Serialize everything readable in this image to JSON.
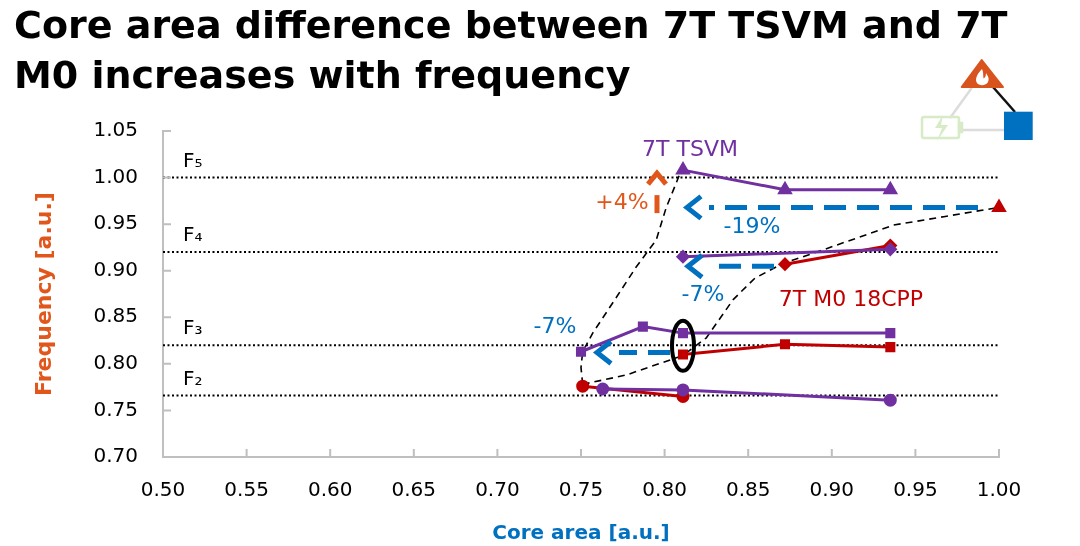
{
  "chart_data": {
    "type": "line",
    "title": "Core area difference between 7T TSVM and 7T M0 increases with frequency",
    "xlabel": "Core area [a.u.]",
    "ylabel": "Frequency [a.u.]",
    "xlim": [
      0.5,
      1.0
    ],
    "xticks": [
      {
        "value": 0.5,
        "label": "0.50"
      },
      0.55,
      {
        "value": 0.6,
        "label": "0.60"
      },
      0.65,
      {
        "value": 0.7,
        "label": "0.70"
      },
      0.75,
      {
        "value": 0.8,
        "label": "0.80"
      },
      0.85,
      {
        "value": 0.9,
        "label": "0.90"
      },
      0.95,
      {
        "value": 1.0,
        "label": "1.00"
      }
    ],
    "ylim": [
      0.7,
      1.05
    ],
    "yticks": [
      {
        "value": 0.7,
        "label": "0.70"
      },
      0.75,
      {
        "value": 0.8,
        "label": "0.80"
      },
      0.85,
      {
        "value": 0.9,
        "label": "0.90"
      },
      0.95,
      {
        "value": 1.0,
        "label": "1.00"
      },
      1.05
    ],
    "ref_lines": [
      {
        "axis": "y",
        "value": 1.0,
        "label": "F₅",
        "color": "#000000",
        "line_style": "dotted"
      },
      {
        "axis": "y",
        "value": 0.92,
        "label": "F₄",
        "color": "#000000",
        "line_style": "dotted"
      },
      {
        "axis": "y",
        "value": 0.82,
        "label": "F₃",
        "color": "#000000",
        "line_style": "dotted"
      },
      {
        "axis": "y",
        "value": 0.766,
        "label": "F₂",
        "color": "#000000",
        "line_style": "dotted"
      }
    ],
    "annotations": [
      {
        "text": "+4%",
        "x": 0.811,
        "y": 1.008
      },
      "-19%",
      {
        "text": "-7%",
        "x": 0.872,
        "y": 0.907
      },
      "-7%"
    ],
    "series": [
      {
        "name": "7T TSVM",
        "color": "#7030a0",
        "marker": "triangle",
        "x": [
          0.811,
          0.872,
          0.935
        ],
        "values": [
          1.008,
          0.987,
          0.987
        ]
      },
      {
        "color": "#7030a0",
        "marker": "diamond",
        "x": [
          0.811,
          0.935
        ],
        "values": [
          0.915,
          0.923
        ]
      },
      {
        "color": "#7030a0",
        "marker": "square",
        "x": [
          0.75,
          0.787,
          0.811,
          0.935
        ],
        "values": [
          0.813,
          0.84,
          0.833,
          0.833
        ]
      },
      {
        "color": "#7030a0",
        "marker": "circle",
        "x": [
          0.763,
          0.811,
          0.935
        ],
        "values": [
          0.773,
          0.772,
          0.761
        ]
      },
      {
        "color": "#c00000",
        "marker": "triangle",
        "x": [
          1.0
        ],
        "values": [
          0.968
        ]
      },
      {
        "name": "7T M0 18CPP",
        "color": "#c00000",
        "marker": "diamond",
        "x": [
          0.872,
          0.935
        ],
        "values": [
          0.907,
          0.927
        ]
      },
      {
        "color": "#c00000",
        "marker": "square",
        "x": [
          0.811,
          0.872,
          0.935
        ],
        "values": [
          0.81,
          0.821,
          0.818
        ]
      },
      {
        "color": "#c00000",
        "marker": "circle",
        "x": [
          0.751,
          0.811
        ],
        "values": [
          0.776,
          0.765
        ]
      },
      {
        "type": "line",
        "color": "#000000",
        "marker": "none",
        "line_style": "dashed",
        "x": [
          0.751,
          0.75,
          0.751,
          0.757,
          0.771,
          0.783,
          0.795,
          0.801,
          0.806,
          0.81
        ],
        "values": [
          0.778,
          0.796,
          0.813,
          0.833,
          0.871,
          0.904,
          0.933,
          0.968,
          0.99,
          1.008
        ]
      },
      {
        "type": "line",
        "color": "#000000",
        "marker": "none",
        "line_style": "dashed",
        "x": [
          0.751,
          0.777,
          0.811,
          0.825,
          0.841,
          0.854,
          0.871,
          0.891,
          0.937,
          0.967,
          1.0
        ],
        "values": [
          0.778,
          0.788,
          0.809,
          0.828,
          0.869,
          0.892,
          0.908,
          0.92,
          0.949,
          0.958,
          0.968
        ]
      }
    ]
  }
}
